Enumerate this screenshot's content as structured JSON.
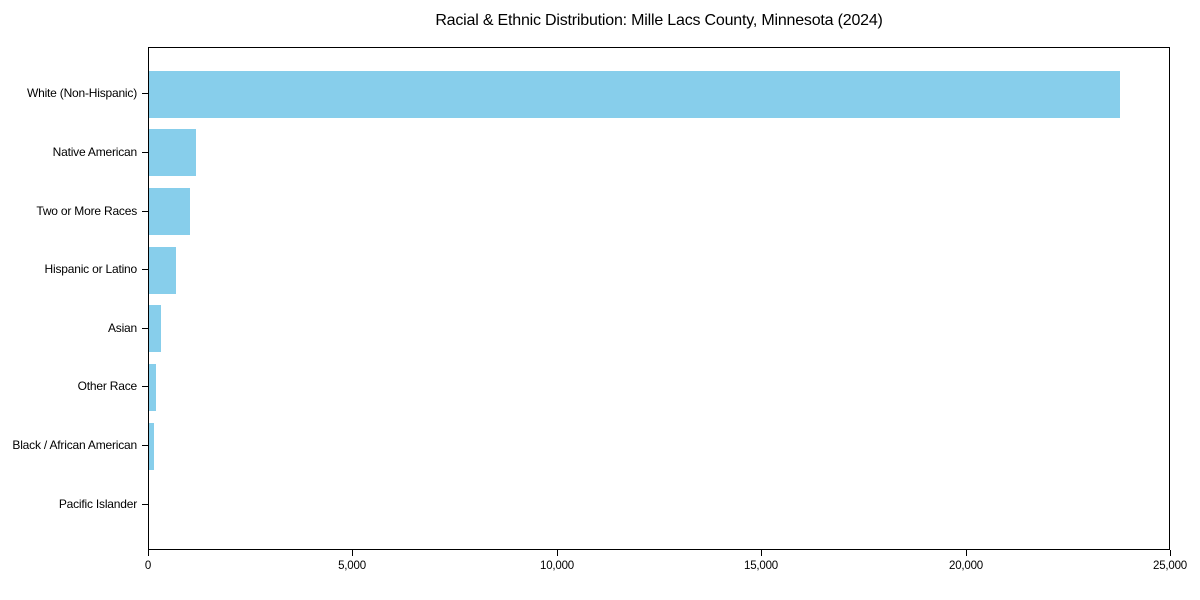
{
  "title": "Racial & Ethnic Distribution: Mille Lacs County, Minnesota (2024)",
  "colors": {
    "bar": "#87CEEB",
    "axis": "#000000",
    "text": "#000000",
    "background": "#ffffff"
  },
  "chart_data": {
    "type": "bar",
    "orientation": "horizontal",
    "title": "Racial & Ethnic Distribution: Mille Lacs County, Minnesota (2024)",
    "categories": [
      "White (Non-Hispanic)",
      "Native American",
      "Two or More Races",
      "Hispanic or Latino",
      "Asian",
      "Other Race",
      "Black / African American",
      "Pacific Islander"
    ],
    "values": [
      23800,
      1150,
      1000,
      650,
      290,
      170,
      120,
      10
    ],
    "xlabel": "",
    "ylabel": "",
    "xlim": [
      0,
      25000
    ],
    "x_ticks": [
      0,
      5000,
      10000,
      15000,
      20000,
      25000
    ],
    "x_tick_labels": [
      "0",
      "5,000",
      "10,000",
      "15,000",
      "20,000",
      "25,000"
    ],
    "grid": false,
    "legend": false,
    "bar_color": "#87CEEB"
  }
}
